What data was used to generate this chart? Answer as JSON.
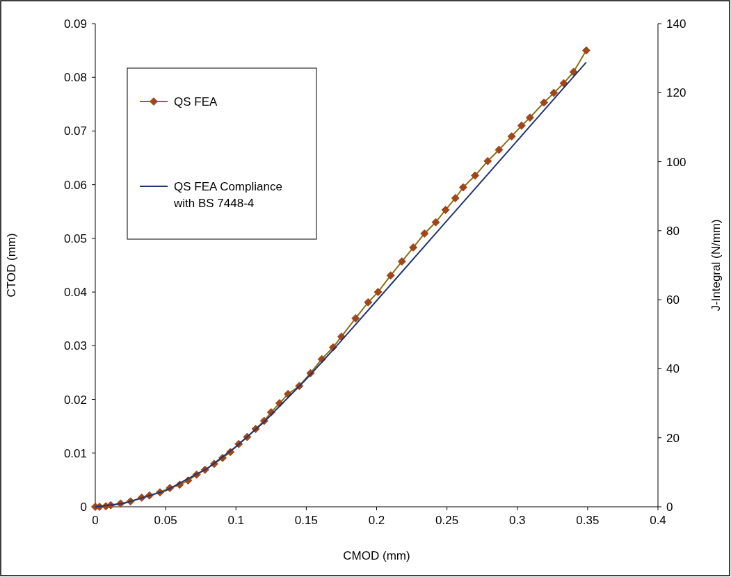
{
  "chart_data": {
    "type": "line",
    "xlabel": "CMOD (mm)",
    "ylabel": "CTOD (mm)",
    "y2label": "J-Integral (N/mm)",
    "xlim": [
      0,
      0.4
    ],
    "xticks": [
      0,
      0.05,
      0.1,
      0.15,
      0.2,
      0.25,
      0.3,
      0.35,
      0.4
    ],
    "ylim": [
      0,
      0.09
    ],
    "yticks": [
      0,
      0.01,
      0.02,
      0.03,
      0.04,
      0.05,
      0.06,
      0.07,
      0.08,
      0.09
    ],
    "y2lim": [
      0,
      140
    ],
    "y2ticks": [
      0,
      20,
      40,
      60,
      80,
      100,
      120,
      140
    ],
    "grid": false,
    "legend": "top left",
    "series": [
      {
        "name": "QS FEA",
        "color": "#8c6d12",
        "marker": "diamond",
        "x": [
          0,
          0.003,
          0.0075,
          0.011,
          0.018,
          0.025,
          0.033,
          0.0385,
          0.046,
          0.053,
          0.06,
          0.066,
          0.072,
          0.078,
          0.0845,
          0.0905,
          0.096,
          0.102,
          0.108,
          0.114,
          0.12,
          0.125,
          0.131,
          0.137,
          0.145,
          0.153,
          0.161,
          0.169,
          0.175,
          0.185,
          0.194,
          0.201,
          0.21,
          0.218,
          0.226,
          0.234,
          0.242,
          0.249,
          0.256,
          0.2615,
          0.27,
          0.279,
          0.287,
          0.296,
          0.303,
          0.309,
          0.319,
          0.326,
          0.333,
          0.34,
          0.349
        ],
        "values": [
          0,
          0,
          0.0001,
          0.0003,
          0.0006,
          0.001,
          0.0017,
          0.0021,
          0.0027,
          0.0035,
          0.0041,
          0.0049,
          0.006,
          0.0069,
          0.008,
          0.0091,
          0.0102,
          0.0117,
          0.013,
          0.0145,
          0.016,
          0.0176,
          0.0193,
          0.021,
          0.0225,
          0.0249,
          0.0275,
          0.0297,
          0.0317,
          0.0351,
          0.0381,
          0.04,
          0.0431,
          0.0457,
          0.0483,
          0.0509,
          0.053,
          0.0553,
          0.0575,
          0.0595,
          0.0617,
          0.0644,
          0.0665,
          0.069,
          0.071,
          0.0725,
          0.0753,
          0.0771,
          0.0789,
          0.081,
          0.085
        ]
      },
      {
        "name": "QS FEA Compliance with BS 7448-4",
        "color": "#1f3470",
        "marker": "none",
        "x": [
          0,
          0.02,
          0.05,
          0.08,
          0.1,
          0.12,
          0.15,
          0.17,
          0.2,
          0.25,
          0.3,
          0.349
        ],
        "values": [
          0,
          0.0006,
          0.003,
          0.0072,
          0.0112,
          0.0158,
          0.0238,
          0.0295,
          0.0384,
          0.0533,
          0.0682,
          0.0828
        ]
      }
    ]
  }
}
